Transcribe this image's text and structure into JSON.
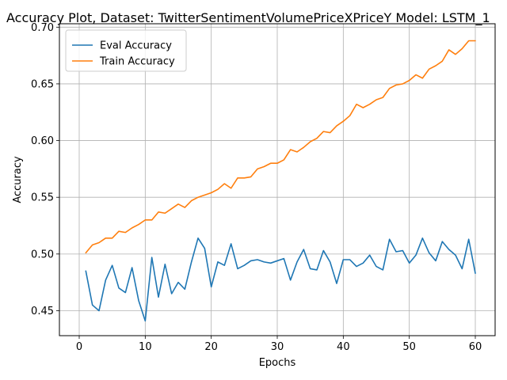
{
  "chart_data": {
    "type": "line",
    "title": "Accuracy Plot, Dataset: TwitterSentimentVolumePriceXPriceY Model: LSTM_1",
    "xlabel": "Epochs",
    "ylabel": "Accuracy",
    "xlim": [
      -3,
      63
    ],
    "ylim": [
      0.428,
      0.703
    ],
    "x_ticks": [
      0,
      10,
      20,
      30,
      40,
      50,
      60
    ],
    "y_ticks": [
      0.45,
      0.5,
      0.55,
      0.6,
      0.65,
      0.7
    ],
    "x_tick_labels": [
      "0",
      "10",
      "20",
      "30",
      "40",
      "50",
      "60"
    ],
    "y_tick_labels": [
      "0.45",
      "0.50",
      "0.55",
      "0.60",
      "0.65",
      "0.70"
    ],
    "grid": true,
    "legend_position": "top-left",
    "x": [
      1,
      2,
      3,
      4,
      5,
      6,
      7,
      8,
      9,
      10,
      11,
      12,
      13,
      14,
      15,
      16,
      17,
      18,
      19,
      20,
      21,
      22,
      23,
      24,
      25,
      26,
      27,
      28,
      29,
      30,
      31,
      32,
      33,
      34,
      35,
      36,
      37,
      38,
      39,
      40,
      41,
      42,
      43,
      44,
      45,
      46,
      47,
      48,
      49,
      50,
      51,
      52,
      53,
      54,
      55,
      56,
      57,
      58,
      59,
      60
    ],
    "series": [
      {
        "name": "Eval Accuracy",
        "color": "#1f77b4",
        "values": [
          0.485,
          0.455,
          0.45,
          0.477,
          0.49,
          0.47,
          0.466,
          0.488,
          0.459,
          0.441,
          0.497,
          0.462,
          0.491,
          0.465,
          0.475,
          0.469,
          0.493,
          0.514,
          0.505,
          0.471,
          0.493,
          0.49,
          0.509,
          0.487,
          0.49,
          0.494,
          0.495,
          0.493,
          0.492,
          0.494,
          0.496,
          0.477,
          0.493,
          0.504,
          0.487,
          0.486,
          0.503,
          0.493,
          0.474,
          0.495,
          0.495,
          0.489,
          0.492,
          0.499,
          0.489,
          0.486,
          0.513,
          0.502,
          0.503,
          0.492,
          0.499,
          0.514,
          0.501,
          0.494,
          0.511,
          0.504,
          0.499,
          0.487,
          0.513,
          0.483
        ]
      },
      {
        "name": "Train Accuracy",
        "color": "#ff7f0e",
        "values": [
          0.501,
          0.508,
          0.51,
          0.514,
          0.514,
          0.52,
          0.519,
          0.523,
          0.526,
          0.53,
          0.53,
          0.537,
          0.536,
          0.54,
          0.544,
          0.541,
          0.547,
          0.55,
          0.552,
          0.554,
          0.557,
          0.562,
          0.558,
          0.567,
          0.567,
          0.568,
          0.575,
          0.577,
          0.58,
          0.58,
          0.583,
          0.592,
          0.59,
          0.594,
          0.599,
          0.602,
          0.608,
          0.607,
          0.613,
          0.617,
          0.622,
          0.632,
          0.629,
          0.632,
          0.636,
          0.638,
          0.646,
          0.649,
          0.65,
          0.653,
          0.658,
          0.655,
          0.663,
          0.666,
          0.67,
          0.68,
          0.676,
          0.681,
          0.688,
          0.688
        ]
      }
    ]
  }
}
